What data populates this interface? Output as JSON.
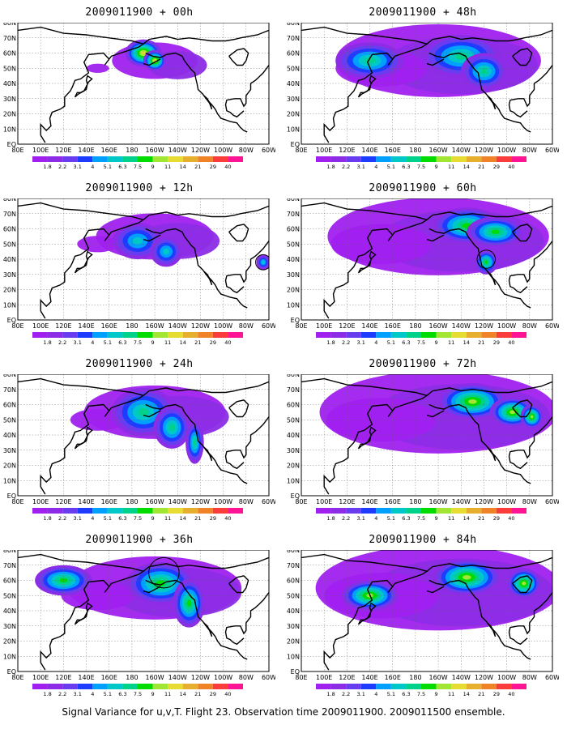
{
  "panels": [
    {
      "title": "2009011900 + 00h",
      "col": 0,
      "row": 0,
      "spread": 0.25,
      "intensity": 0.85,
      "centers": [
        [
          -170,
          60,
          16,
          9
        ],
        [
          -160,
          55,
          10,
          7
        ]
      ],
      "circles": []
    },
    {
      "title": "2009011900 + 12h",
      "col": 0,
      "row": 1,
      "spread": 0.45,
      "intensity": 0.45,
      "centers": [
        [
          -175,
          52,
          22,
          12
        ],
        [
          -150,
          45,
          14,
          10
        ],
        [
          -65,
          38,
          6,
          5
        ]
      ],
      "circles": [
        [
          -65,
          38,
          5
        ]
      ]
    },
    {
      "title": "2009011900 + 24h",
      "col": 0,
      "row": 2,
      "spread": 0.6,
      "intensity": 0.55,
      "centers": [
        [
          -170,
          55,
          28,
          16
        ],
        [
          -145,
          45,
          16,
          14
        ],
        [
          -125,
          35,
          8,
          14
        ]
      ],
      "circles": []
    },
    {
      "title": "2009011900 + 36h",
      "col": 0,
      "row": 3,
      "spread": 0.8,
      "intensity": 0.65,
      "centers": [
        [
          -155,
          58,
          30,
          14
        ],
        [
          -130,
          45,
          14,
          16
        ],
        [
          120,
          60,
          25,
          10
        ]
      ],
      "circles": [
        [
          -152,
          65,
          10
        ]
      ]
    },
    {
      "title": "2009011900 + 48h",
      "col": 1,
      "row": 0,
      "spread": 1.0,
      "intensity": 0.6,
      "centers": [
        [
          -140,
          58,
          35,
          14
        ],
        [
          -120,
          48,
          20,
          12
        ],
        [
          140,
          55,
          30,
          12
        ]
      ],
      "circles": []
    },
    {
      "title": "2009011900 + 60h",
      "col": 1,
      "row": 1,
      "spread": 1.1,
      "intensity": 0.65,
      "centers": [
        [
          -135,
          62,
          30,
          12
        ],
        [
          -110,
          58,
          25,
          10
        ],
        [
          -118,
          38,
          10,
          8
        ]
      ],
      "circles": [
        [
          -118,
          40,
          6
        ]
      ]
    },
    {
      "title": "2009011900 + 72h",
      "col": 1,
      "row": 2,
      "spread": 1.2,
      "intensity": 0.75,
      "centers": [
        [
          -130,
          62,
          30,
          12
        ],
        [
          -95,
          55,
          20,
          10
        ],
        [
          -78,
          52,
          10,
          8
        ]
      ],
      "circles": []
    },
    {
      "title": "2009011900 + 84h",
      "col": 1,
      "row": 3,
      "spread": 1.25,
      "intensity": 0.75,
      "centers": [
        [
          -135,
          62,
          30,
          12
        ],
        [
          -85,
          58,
          15,
          10
        ],
        [
          140,
          50,
          25,
          10
        ]
      ],
      "circles": []
    }
  ],
  "map": {
    "lat_labels": [
      "80N",
      "70N",
      "60N",
      "50N",
      "40N",
      "30N",
      "20N",
      "10N",
      "EQ"
    ],
    "lon_labels": [
      "80E",
      "100E",
      "120E",
      "140E",
      "160E",
      "180",
      "160W",
      "140W",
      "120W",
      "100W",
      "80W",
      "60W"
    ]
  },
  "colorbar": {
    "levels": [
      "1.8",
      "2.2",
      "3.1",
      "4",
      "5.1",
      "6.3",
      "7.5",
      "9",
      "11",
      "14",
      "21",
      "29",
      "40"
    ],
    "colors": [
      "#a020f0",
      "#8c2ce6",
      "#6a3cf0",
      "#1e3cff",
      "#00a0ff",
      "#00c8c8",
      "#00d28c",
      "#00dc00",
      "#a0e632",
      "#e6dc32",
      "#e6af2d",
      "#f08228",
      "#fa3c3c",
      "#ff1493"
    ]
  },
  "footer": {
    "caption": "Signal Variance for u,v,T. Flight 23. Observation time 2009011900. 2009011500 ensemble."
  }
}
